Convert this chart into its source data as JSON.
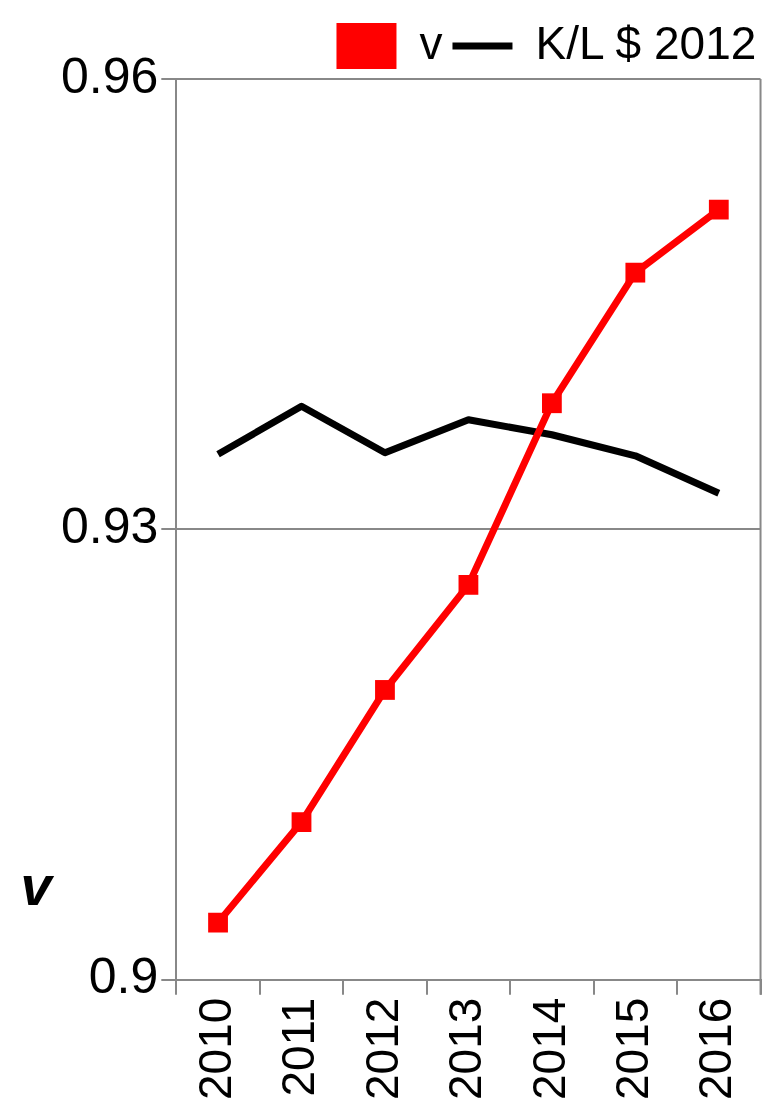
{
  "chart_data": {
    "type": "line",
    "ylabel": "v",
    "categories": [
      "2010",
      "2011",
      "2012",
      "2013",
      "2014",
      "2015",
      "2016"
    ],
    "series": [
      {
        "name": "v",
        "color": "#ff0000",
        "marker": "square",
        "values": [
          0.9038,
          0.9105,
          0.9193,
          0.9263,
          0.9384,
          0.9471,
          0.9513
        ]
      },
      {
        "name": "K/L $ 2012",
        "color": "#000000",
        "marker": "none",
        "values": [
          0.935,
          0.9382,
          0.9351,
          0.9373,
          0.9363,
          0.9349,
          0.9324
        ]
      }
    ],
    "ylim": [
      0.9,
      0.96
    ],
    "yticks": [
      0.9,
      0.93,
      0.96
    ],
    "grid": "y",
    "legend": "top"
  }
}
